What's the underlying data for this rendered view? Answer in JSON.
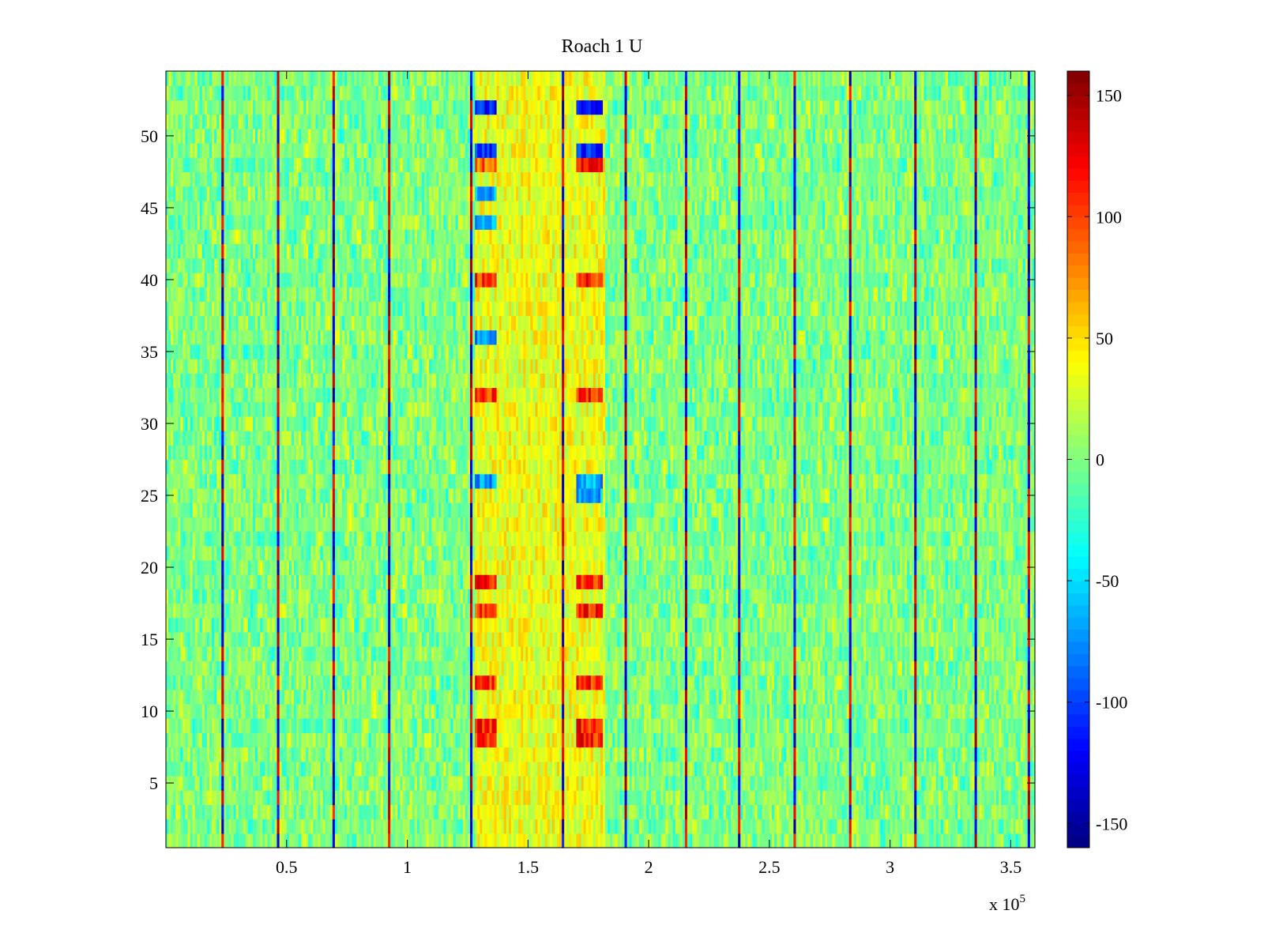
{
  "chart_data": {
    "type": "heatmap",
    "title": "Roach 1 U",
    "xlabel": "",
    "ylabel": "",
    "x_range": [
      0,
      360000
    ],
    "y_range": [
      0.5,
      54.5
    ],
    "x_scale_label": "x 10",
    "x_scale_exponent": "5",
    "x_ticks": [
      {
        "value": 50000,
        "label": "0.5"
      },
      {
        "value": 100000,
        "label": "1"
      },
      {
        "value": 150000,
        "label": "1.5"
      },
      {
        "value": 200000,
        "label": "2"
      },
      {
        "value": 250000,
        "label": "2.5"
      },
      {
        "value": 300000,
        "label": "3"
      },
      {
        "value": 350000,
        "label": "3.5"
      }
    ],
    "y_ticks": [
      {
        "value": 5,
        "label": "5"
      },
      {
        "value": 10,
        "label": "10"
      },
      {
        "value": 15,
        "label": "15"
      },
      {
        "value": 20,
        "label": "20"
      },
      {
        "value": 25,
        "label": "25"
      },
      {
        "value": 30,
        "label": "30"
      },
      {
        "value": 35,
        "label": "35"
      },
      {
        "value": 40,
        "label": "40"
      },
      {
        "value": 45,
        "label": "45"
      },
      {
        "value": 50,
        "label": "50"
      }
    ],
    "colorbar": {
      "colormap": "jet",
      "range": [
        -160,
        160
      ],
      "ticks": [
        {
          "value": 150,
          "label": "150"
        },
        {
          "value": 100,
          "label": "100"
        },
        {
          "value": 50,
          "label": "50"
        },
        {
          "value": 0,
          "label": "0"
        },
        {
          "value": -50,
          "label": "-50"
        },
        {
          "value": -100,
          "label": "-100"
        },
        {
          "value": -150,
          "label": "-150"
        }
      ]
    },
    "background_noise_range": [
      -40,
      40
    ],
    "vertical_stripes_x": [
      23000,
      46000,
      69000,
      92000,
      126000,
      164000,
      190000,
      215000,
      237000,
      260000,
      283000,
      310000,
      335000,
      357000
    ],
    "stripe_value_range": [
      -150,
      150
    ],
    "hot_regions": [
      {
        "x_range": [
          128000,
          137000
        ],
        "y_rows": [
          8,
          9,
          12,
          17,
          19,
          32,
          40
        ],
        "value": 110
      },
      {
        "x_range": [
          170000,
          181000
        ],
        "y_rows": [
          8,
          9,
          12,
          17,
          19,
          32,
          40,
          48
        ],
        "value": 110
      },
      {
        "x_range": [
          128000,
          137000
        ],
        "y_rows": [
          48
        ],
        "value": 90
      }
    ],
    "cold_regions": [
      {
        "x_range": [
          128000,
          137000
        ],
        "y_rows": [
          49,
          52
        ],
        "value": -110
      },
      {
        "x_range": [
          170000,
          181000
        ],
        "y_rows": [
          49,
          52
        ],
        "value": -110
      },
      {
        "x_range": [
          128000,
          137000
        ],
        "y_rows": [
          26,
          36,
          44,
          46
        ],
        "value": -70
      },
      {
        "x_range": [
          170000,
          181000
        ],
        "y_rows": [
          25,
          26
        ],
        "value": -70
      }
    ],
    "warm_band": {
      "x_range": [
        128000,
        182000
      ],
      "value_range": [
        10,
        60
      ]
    }
  }
}
